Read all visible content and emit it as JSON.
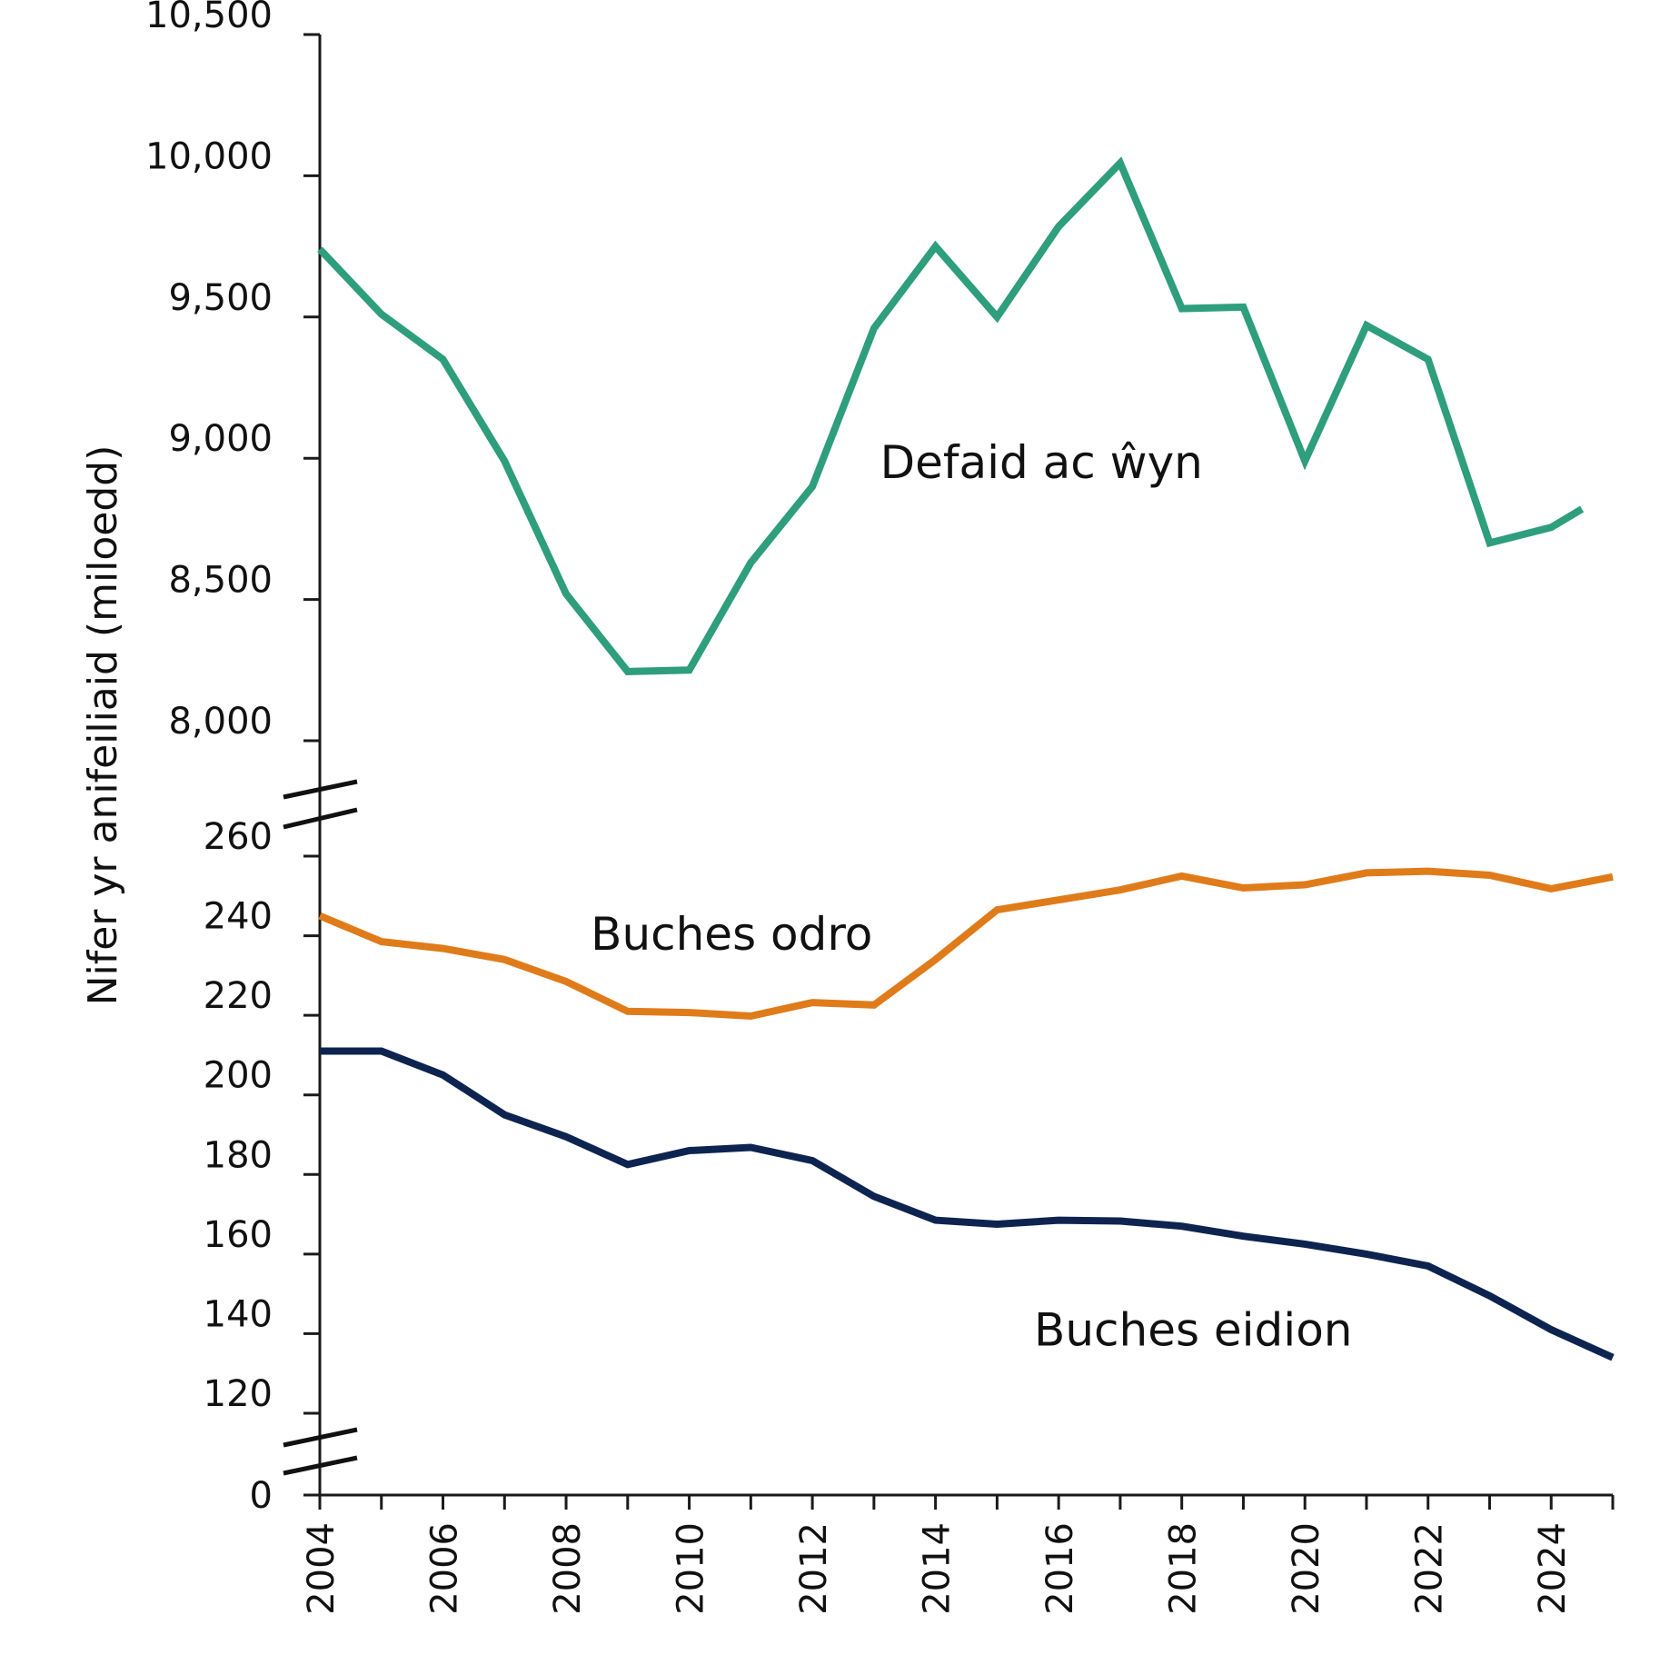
{
  "chart_data": {
    "type": "line",
    "ylabel": "Nifer yr anifeiliaid (miloedd)",
    "x_ticks": [
      2004,
      2006,
      2008,
      2010,
      2012,
      2014,
      2016,
      2018,
      2020,
      2022,
      2024
    ],
    "x_range": [
      2004,
      2025
    ],
    "y_axis_breaks": true,
    "upper_panel": {
      "ylim": [
        8000,
        10500
      ],
      "ticks": [
        "8,000",
        "8,500",
        "9,000",
        "9,500",
        "10,000",
        "10,500"
      ],
      "tick_values": [
        8000,
        8500,
        9000,
        9500,
        10000,
        10500
      ]
    },
    "lower_panel": {
      "ylim": [
        120,
        260
      ],
      "ticks": [
        "120",
        "140",
        "160",
        "180",
        "200",
        "220",
        "240",
        "260"
      ],
      "tick_values": [
        120,
        140,
        160,
        180,
        200,
        220,
        240,
        260
      ]
    },
    "zero_tick": "0",
    "series": [
      {
        "name": "Defaid ac ŵyn",
        "panel": "upper",
        "color": "#2e9e7c",
        "x": [
          2004,
          2005,
          2006,
          2007,
          2008,
          2009,
          2010,
          2011,
          2012,
          2013,
          2014,
          2015,
          2016,
          2017,
          2018,
          2019,
          2020,
          2021,
          2022,
          2023,
          2024,
          2024.5
        ],
        "y": [
          9740,
          9510,
          9350,
          8990,
          8520,
          8245,
          8250,
          8630,
          8900,
          9460,
          9750,
          9500,
          9820,
          10045,
          9530,
          9535,
          8990,
          9470,
          9350,
          8700,
          8755,
          8820
        ]
      },
      {
        "name": "Buches odro",
        "panel": "lower",
        "color": "#e07b1a",
        "x": [
          2004,
          2005,
          2006,
          2007,
          2008,
          2009,
          2010,
          2011,
          2012,
          2013,
          2014,
          2015,
          2016,
          2017,
          2018,
          2019,
          2020,
          2021,
          2022,
          2023,
          2024,
          2025
        ],
        "y": [
          245,
          238.5,
          236.8,
          234,
          228.5,
          221,
          220.7,
          219.8,
          223.2,
          222.6,
          234,
          246.5,
          249,
          251.5,
          255,
          252,
          252.8,
          255.8,
          256.2,
          255.2,
          251.8,
          254.8
        ]
      },
      {
        "name": "Buches eidion",
        "panel": "lower",
        "color": "#0e2450",
        "x": [
          2004,
          2005,
          2006,
          2007,
          2008,
          2009,
          2010,
          2011,
          2012,
          2013,
          2014,
          2015,
          2016,
          2017,
          2018,
          2019,
          2020,
          2021,
          2022,
          2023,
          2024,
          2025
        ],
        "y": [
          211,
          211,
          205,
          195,
          189.5,
          182.5,
          186,
          186.8,
          183.5,
          174.5,
          168.5,
          167.5,
          168.5,
          168.3,
          167,
          164.5,
          162.5,
          160,
          157,
          149.5,
          141,
          134
        ]
      }
    ],
    "series_labels": [
      {
        "text": "Defaid ac ŵyn",
        "series": 0,
        "anchor_year": 2013.1,
        "anchor_value": 8930
      },
      {
        "text": "Buches odro",
        "series": 1,
        "anchor_year": 2008.4,
        "anchor_value": 236.5
      },
      {
        "text": "Buches eidion",
        "series": 2,
        "anchor_year": 2015.6,
        "anchor_value": 137
      }
    ]
  }
}
